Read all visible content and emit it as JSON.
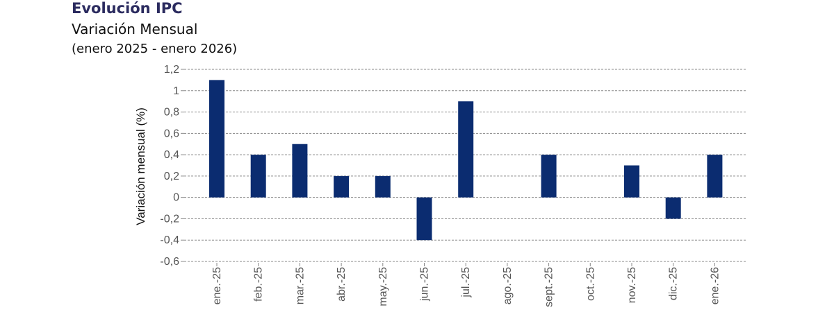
{
  "header": {
    "title": "Evolución IPC",
    "subtitle": "Variación Mensual",
    "period": "(enero 2025 - enero 2026)"
  },
  "chart_data": {
    "type": "bar",
    "title": "Evolución IPC",
    "subtitle": "Variación Mensual (enero 2025 - enero 2026)",
    "xlabel": "",
    "ylabel": "Variación mensual (%)",
    "categories": [
      "ene.-25",
      "feb.-25",
      "mar.-25",
      "abr.-25",
      "may.-25",
      "jun.-25",
      "jul.-25",
      "ago.-25",
      "sept.-25",
      "oct.-25",
      "nov.-25",
      "dic.-25",
      "ene.-26"
    ],
    "values": [
      1.1,
      0.4,
      0.5,
      0.2,
      0.2,
      -0.4,
      0.9,
      0,
      0.4,
      0,
      0.3,
      -0.2,
      0.4
    ],
    "ylim": [
      -0.6,
      1.2
    ],
    "yticks": [
      -0.6,
      -0.4,
      -0.2,
      0,
      0.2,
      0.4,
      0.6,
      0.8,
      1,
      1.2
    ],
    "ytick_labels": [
      "-0,6",
      "-0,4",
      "-0,2",
      "0",
      "0,2",
      "0,4",
      "0,6",
      "0,8",
      "1",
      "1,2"
    ],
    "grid": true,
    "bar_color": "#0b2c70"
  }
}
